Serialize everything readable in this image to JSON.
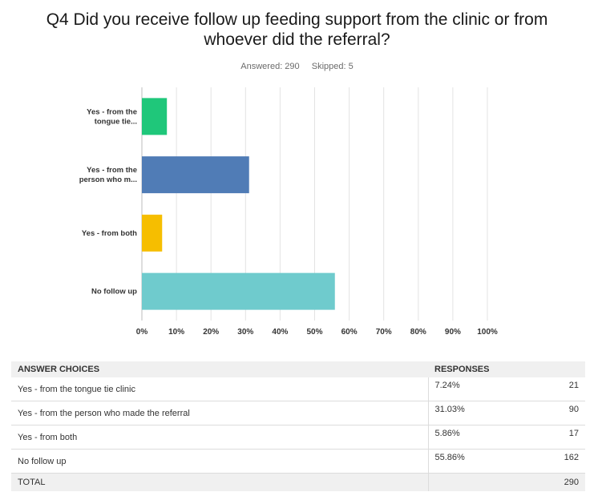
{
  "question": {
    "title_line1": "Q4 Did you receive follow up feeding support from the clinic or from",
    "title_line2": "whoever did the referral?",
    "answered": "Answered: 290",
    "skipped": "Skipped: 5"
  },
  "chart_data": {
    "type": "bar",
    "orientation": "horizontal",
    "categories": [
      [
        "Yes - from the",
        "tongue tie..."
      ],
      [
        "Yes - from the",
        "person who m..."
      ],
      [
        "Yes - from both"
      ],
      [
        "No follow up"
      ]
    ],
    "values": [
      7.24,
      31.03,
      5.86,
      55.86
    ],
    "colors": [
      "#1fc77a",
      "#507cb6",
      "#f6be00",
      "#6fcbcd"
    ],
    "x_ticks": [
      "0%",
      "10%",
      "20%",
      "30%",
      "40%",
      "50%",
      "60%",
      "70%",
      "80%",
      "90%",
      "100%"
    ],
    "xlim": [
      0,
      100
    ],
    "grid": true
  },
  "table": {
    "headers": {
      "choice": "ANSWER CHOICES",
      "responses": "RESPONSES"
    },
    "rows": [
      {
        "choice": "Yes - from the tongue tie clinic",
        "percent": "7.24%",
        "count": "21"
      },
      {
        "choice": "Yes - from the person who made the referral",
        "percent": "31.03%",
        "count": "90"
      },
      {
        "choice": "Yes - from both",
        "percent": "5.86%",
        "count": "17"
      },
      {
        "choice": "No follow up",
        "percent": "55.86%",
        "count": "162"
      }
    ],
    "total": {
      "label": "TOTAL",
      "count": "290"
    }
  }
}
